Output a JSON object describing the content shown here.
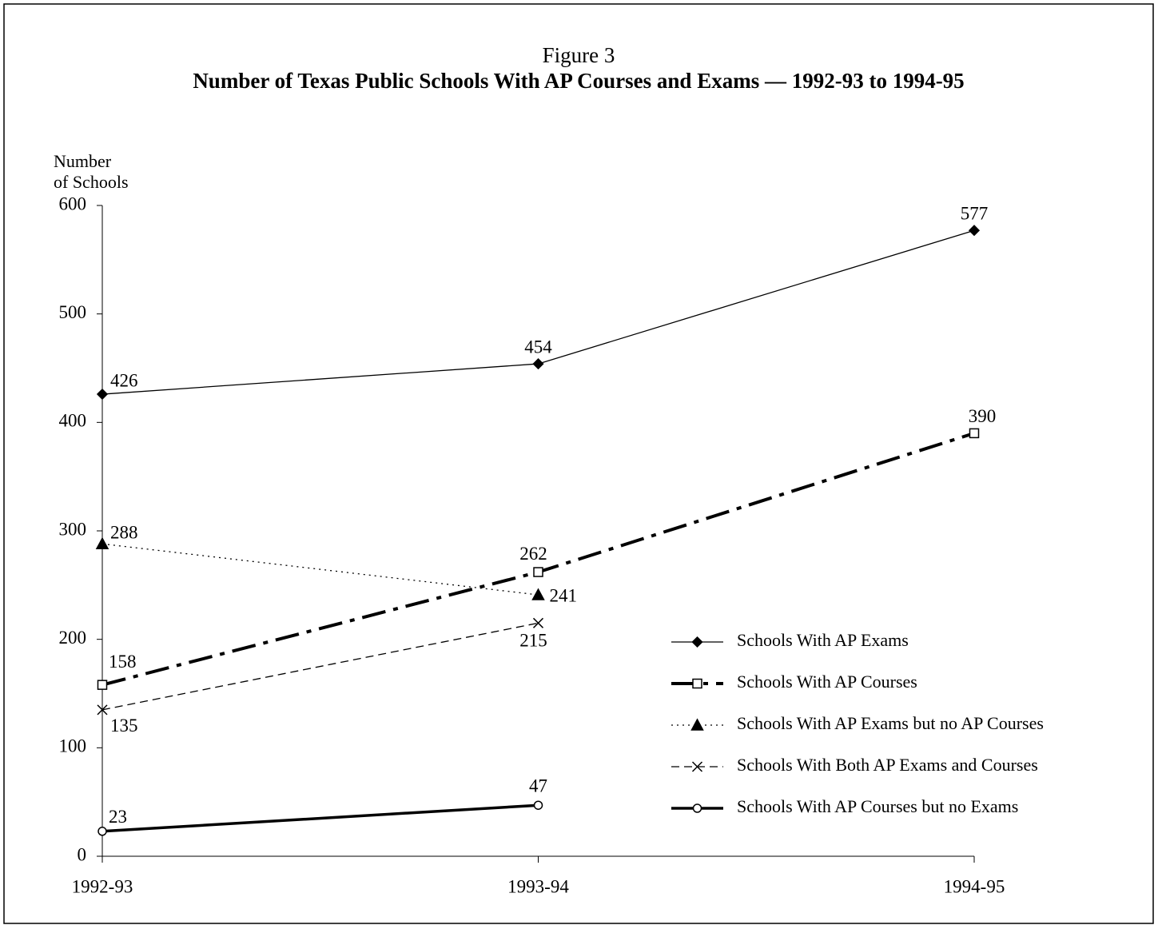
{
  "chart_data": {
    "type": "line",
    "title": "Figure 3",
    "subtitle": "Number of Texas Public Schools With AP Courses and Exams — 1992-93 to 1994-95",
    "ylabel": [
      "Number",
      "of Schools"
    ],
    "categories": [
      "1992-93",
      "1993-94",
      "1994-95"
    ],
    "ylim": [
      0,
      600
    ],
    "yticks": [
      0,
      100,
      200,
      300,
      400,
      500,
      600
    ],
    "legend": "lower-right",
    "series": [
      {
        "name": "Schools With AP Exams",
        "color": "#000000",
        "marker": "diamond",
        "linestyle": "solid",
        "weight": "thin",
        "values": [
          426,
          454,
          577
        ]
      },
      {
        "name": "Schools With AP Courses",
        "color": "#000000",
        "marker": "square-open",
        "linestyle": "dash-dot",
        "weight": "bold",
        "values": [
          158,
          262,
          390
        ]
      },
      {
        "name": "Schools With AP Exams but no AP Courses",
        "color": "#000000",
        "marker": "triangle",
        "linestyle": "dotted",
        "weight": "thin",
        "values": [
          288,
          241,
          null
        ]
      },
      {
        "name": "Schools With Both AP Exams and Courses",
        "color": "#000000",
        "marker": "x",
        "linestyle": "dashed",
        "weight": "thin",
        "values": [
          135,
          215,
          null
        ]
      },
      {
        "name": "Schools With AP Courses but no Exams",
        "color": "#000000",
        "marker": "circle-open",
        "linestyle": "solid",
        "weight": "bold",
        "values": [
          23,
          47,
          null
        ]
      }
    ]
  }
}
